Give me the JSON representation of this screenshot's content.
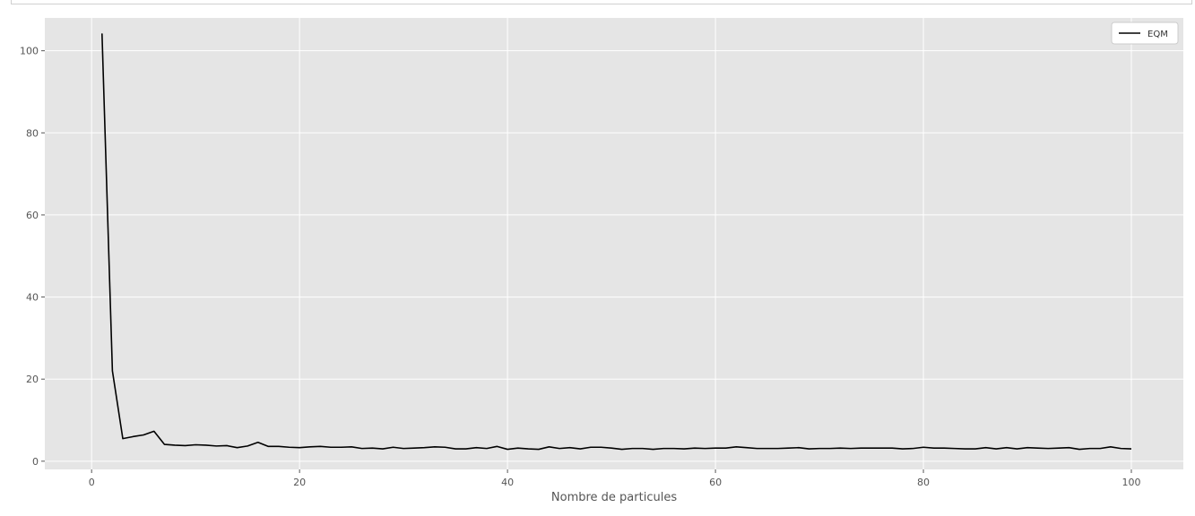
{
  "chart_data": {
    "type": "line",
    "title": "",
    "xlabel": "Nombre de particules",
    "ylabel": "",
    "xlim": [
      -4.5,
      105
    ],
    "ylim": [
      -2,
      108
    ],
    "xticks": [
      0,
      20,
      40,
      60,
      80,
      100
    ],
    "yticks": [
      0,
      20,
      40,
      60,
      80,
      100
    ],
    "grid": true,
    "legend_position": "top-right",
    "style": "ggplot",
    "colors": {
      "background": "#e5e5e5",
      "grid": "#ffffff",
      "line": "#000000"
    },
    "series": [
      {
        "name": "EQM",
        "x": [
          1,
          2,
          3,
          4,
          5,
          6,
          7,
          8,
          9,
          10,
          11,
          12,
          13,
          14,
          15,
          16,
          17,
          18,
          19,
          20,
          21,
          22,
          23,
          24,
          25,
          26,
          27,
          28,
          29,
          30,
          31,
          32,
          33,
          34,
          35,
          36,
          37,
          38,
          39,
          40,
          41,
          42,
          43,
          44,
          45,
          46,
          47,
          48,
          49,
          50,
          51,
          52,
          53,
          54,
          55,
          56,
          57,
          58,
          59,
          60,
          61,
          62,
          63,
          64,
          65,
          66,
          67,
          68,
          69,
          70,
          71,
          72,
          73,
          74,
          75,
          76,
          77,
          78,
          79,
          80,
          81,
          82,
          83,
          84,
          85,
          86,
          87,
          88,
          89,
          90,
          91,
          92,
          93,
          94,
          95,
          96,
          97,
          98,
          99,
          100
        ],
        "y": [
          104.2,
          22.0,
          5.5,
          6.0,
          6.4,
          7.3,
          4.1,
          3.9,
          3.8,
          4.0,
          3.9,
          3.7,
          3.8,
          3.3,
          3.7,
          4.6,
          3.6,
          3.6,
          3.4,
          3.3,
          3.5,
          3.6,
          3.4,
          3.4,
          3.5,
          3.1,
          3.2,
          3.0,
          3.4,
          3.1,
          3.2,
          3.3,
          3.5,
          3.4,
          3.0,
          3.0,
          3.3,
          3.1,
          3.6,
          2.9,
          3.2,
          3.0,
          2.9,
          3.5,
          3.1,
          3.3,
          3.0,
          3.4,
          3.4,
          3.2,
          2.9,
          3.1,
          3.1,
          2.9,
          3.1,
          3.1,
          3.0,
          3.2,
          3.1,
          3.2,
          3.2,
          3.5,
          3.3,
          3.1,
          3.1,
          3.1,
          3.2,
          3.3,
          3.0,
          3.1,
          3.1,
          3.2,
          3.1,
          3.2,
          3.2,
          3.2,
          3.2,
          3.0,
          3.1,
          3.4,
          3.2,
          3.2,
          3.1,
          3.0,
          3.0,
          3.3,
          3.0,
          3.3,
          3.0,
          3.3,
          3.2,
          3.1,
          3.2,
          3.3,
          2.9,
          3.1,
          3.1,
          3.5,
          3.1,
          3.0
        ]
      }
    ]
  }
}
